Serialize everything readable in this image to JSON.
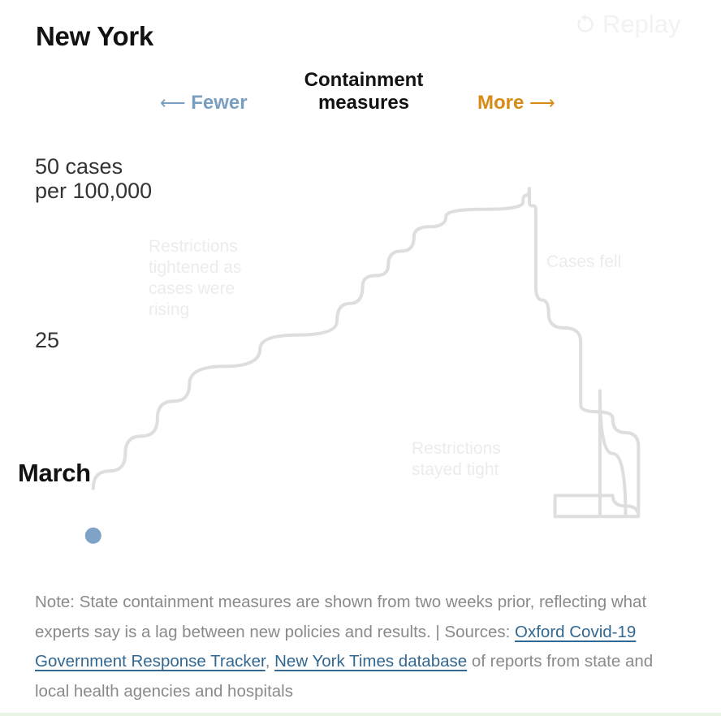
{
  "header": {
    "title": "New York",
    "replay_label": "Replay",
    "replay_icon": "replay-icon"
  },
  "chart_data": {
    "type": "line",
    "title": "New York",
    "xlabel": "Containment measures",
    "x_direction_labels": {
      "left": "Fewer",
      "right": "More"
    },
    "x_direction_colors": {
      "left": "#7a9ebf",
      "right": "#d98a14"
    },
    "ylabel": "cases per 100,000",
    "y_ticks": [
      {
        "value": 50,
        "label": "50 cases\nper 100,000"
      },
      {
        "value": 25,
        "label": "25"
      }
    ],
    "ylim": [
      0,
      55
    ],
    "xlim": [
      0,
      100
    ],
    "start_label": "March",
    "start_point_color": "#7fa3c7",
    "line_color": "#dedede",
    "annotations": [
      {
        "text": "Restrictions\ntightened as\ncases were\nrising"
      },
      {
        "text": "Cases fell"
      },
      {
        "text": "Restrictions\nstayed tight"
      }
    ],
    "series": [
      {
        "points": [
          [
            12,
            7
          ],
          [
            17,
            12
          ],
          [
            22,
            17
          ],
          [
            27,
            22
          ],
          [
            38,
            27
          ],
          [
            50,
            31
          ],
          [
            54,
            36
          ],
          [
            58,
            39
          ],
          [
            62,
            43
          ],
          [
            67,
            46
          ],
          [
            79,
            48
          ],
          [
            80,
            50
          ],
          [
            80,
            48
          ],
          [
            81,
            47
          ],
          [
            81,
            36
          ],
          [
            83,
            32
          ],
          [
            88,
            28
          ],
          [
            88,
            19
          ],
          [
            93,
            17
          ],
          [
            97,
            13
          ],
          [
            97,
            3
          ],
          [
            84,
            3
          ],
          [
            84,
            6
          ],
          [
            93,
            6
          ],
          [
            97,
            3
          ],
          [
            95,
            3
          ],
          [
            91,
            21
          ],
          [
            91,
            3
          ]
        ]
      }
    ]
  },
  "note": {
    "prefix": "Note: State containment measures are shown from two weeks prior, reflecting what experts say is a lag between new policies and results. | Sources: ",
    "link1": "Oxford Covid-19 Government Response Tracker",
    "separator": ", ",
    "link2": "New York Times database",
    "suffix": " of reports from state and local health agencies and hospitals"
  }
}
